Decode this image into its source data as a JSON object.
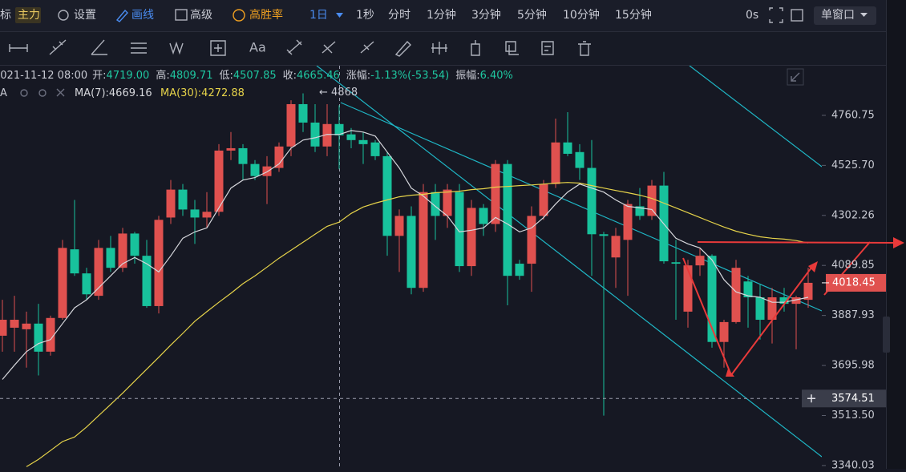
{
  "toolbar": {
    "indicator": "标",
    "main": "主力",
    "settings": "设置",
    "draw": "画线",
    "advanced": "高级",
    "win_rate": "高胜率",
    "period": "1日",
    "periods": [
      "1秒",
      "分时",
      "1分钟",
      "3分钟",
      "5分钟",
      "10分钟",
      "15分钟"
    ],
    "countdown": "0s",
    "window": "单窗口"
  },
  "drawing_tools": {
    "text_tool": "Aa"
  },
  "info_bar": {
    "time": "2021-11-12 08:00",
    "items": [
      {
        "label": "开:",
        "value": "4719.00"
      },
      {
        "label": "高:",
        "value": "4809.71"
      },
      {
        "label": "低:",
        "value": "4507.85"
      },
      {
        "label": "收:",
        "value": "4665.46"
      },
      {
        "label": "涨幅:",
        "value": "-1.13%(-53.54)"
      },
      {
        "label": "振幅:",
        "value": "6.40%"
      }
    ]
  },
  "legend_prefix": "A",
  "chart_data": {
    "type": "candlestick",
    "log_scale": true,
    "up_color": "#e0514f",
    "down_color": "#18c29c",
    "open": [
      3809,
      3840,
      3834,
      3856,
      3748,
      3878,
      4157,
      4057,
      3966,
      4163,
      4080,
      4224,
      4130,
      3925,
      4293,
      4416,
      4328,
      4293,
      4318,
      4594,
      4605,
      4532,
      4477,
      4514,
      4613,
      4815,
      4726,
      4613,
      4719,
      4670,
      4643,
      4632,
      4568,
      4214,
      4300,
      3998,
      4405,
      4300,
      4405,
      4087,
      4335,
      4265,
      4532,
      4097,
      4097,
      4300,
      4441,
      4632,
      4587,
      4514,
      4221,
      4123,
      4197,
      4342,
      4300,
      4434,
      4103,
      3903,
      4090,
      4130,
      3785,
      3862,
      4024,
      3960,
      3871,
      3960,
      3934,
      3950
    ],
    "high": [
      3950,
      3966,
      3903,
      3934,
      3887,
      4197,
      4370,
      4080,
      4197,
      4214,
      4248,
      4231,
      4197,
      4300,
      4459,
      4441,
      4370,
      4405,
      4624,
      4681,
      4624,
      4550,
      4568,
      4632,
      4834,
      4868,
      4815,
      4815,
      4809.71,
      4700,
      4681,
      4643,
      4587,
      4328,
      4342,
      4441,
      4441,
      4441,
      4441,
      4370,
      4352,
      4550,
      4550,
      4113,
      4342,
      4459,
      4745,
      4776,
      4624,
      4643,
      4231,
      4248,
      4370,
      4423,
      4459,
      4496,
      4197,
      4113,
      4163,
      4136,
      3871,
      4113,
      4047,
      4015,
      3998,
      3998,
      3966,
      4080
    ],
    "low": [
      3748,
      3748,
      3688,
      3659,
      3733,
      3871,
      4047,
      3950,
      3950,
      4063,
      4063,
      4097,
      3918,
      3896,
      4265,
      4300,
      4180,
      4248,
      4300,
      4550,
      4459,
      4459,
      4352,
      4496,
      4568,
      4681,
      4587,
      4568,
      4507.85,
      4605,
      4532,
      4550,
      4130,
      4063,
      3972,
      3982,
      4197,
      4248,
      4063,
      4047,
      4214,
      4231,
      3928,
      4031,
      3982,
      4283,
      4423,
      4568,
      4459,
      4047,
      3513,
      3998,
      3966,
      4283,
      4283,
      4097,
      3871,
      3840,
      4047,
      3763,
      3688,
      3856,
      3840,
      3794,
      3779,
      3903,
      3757,
      3918
    ],
    "close": [
      3871,
      3871,
      3856,
      3748,
      3878,
      4163,
      4057,
      3972,
      4163,
      4080,
      4224,
      4130,
      3925,
      4283,
      4416,
      4328,
      4293,
      4318,
      4594,
      4605,
      4532,
      4477,
      4521,
      4613,
      4815,
      4726,
      4613,
      4719,
      4665.46,
      4643,
      4624,
      4568,
      4214,
      4300,
      3998,
      4405,
      4300,
      4416,
      4087,
      4335,
      4265,
      4532,
      4047,
      4047,
      4300,
      4441,
      4632,
      4579,
      4514,
      4221,
      4214,
      4214,
      4352,
      4300,
      4434,
      4107,
      4097,
      4090,
      4130,
      3785,
      3862,
      4080,
      3960,
      3871,
      3960,
      3934,
      3960,
      4018.45
    ],
    "series": [
      {
        "name": "MA(7):4669.16",
        "color": "#d6d7dc",
        "values": [
          3644,
          3697,
          3748,
          3779,
          3794,
          3856,
          3918,
          3950,
          3998,
          4047,
          4097,
          4123,
          4097,
          4063,
          4130,
          4204,
          4231,
          4248,
          4335,
          4423,
          4459,
          4470,
          4496,
          4532,
          4605,
          4643,
          4654,
          4670,
          4669.16,
          4688,
          4681,
          4662,
          4587,
          4514,
          4423,
          4387,
          4342,
          4300,
          4231,
          4238,
          4248,
          4293,
          4265,
          4231,
          4248,
          4293,
          4352,
          4405,
          4441,
          4423,
          4405,
          4370,
          4342,
          4335,
          4328,
          4265,
          4204,
          4180,
          4163,
          4113,
          4031,
          3982,
          3966,
          3960,
          3940,
          3940,
          3950,
          3960
        ]
      },
      {
        "name": "MA(30):4272.88",
        "color": "#e6d34a",
        "values": [
          null,
          null,
          3336,
          3361,
          3391,
          3422,
          3438,
          3473,
          3513,
          3553,
          3594,
          3638,
          3682,
          3727,
          3773,
          3818,
          3865,
          3903,
          3940,
          3976,
          4015,
          4047,
          4083,
          4120,
          4153,
          4187,
          4221,
          4255,
          4272.88,
          4311,
          4339,
          4356,
          4370,
          4384,
          4391,
          4395,
          4402,
          4405,
          4409,
          4416,
          4420,
          4427,
          4430,
          4434,
          4437,
          4441,
          4445,
          4448,
          4445,
          4434,
          4423,
          4412,
          4402,
          4391,
          4377,
          4356,
          4335,
          4314,
          4293,
          4272,
          4252,
          4234,
          4221,
          4210,
          4204,
          4200,
          4194,
          4184
        ]
      }
    ],
    "ylim": [
      3329,
      5006
    ],
    "yticks": [
      3340.03,
      {
        "value": 3513.5,
        "label": "3513.50"
      },
      3695.98,
      3887.93,
      4089.85,
      4302.26,
      {
        "value": 4525.7,
        "label": "4525.70"
      },
      4760.75
    ],
    "max_label": "← 4868",
    "current_price": 4018.45,
    "crosshair_price": 3574.51
  }
}
